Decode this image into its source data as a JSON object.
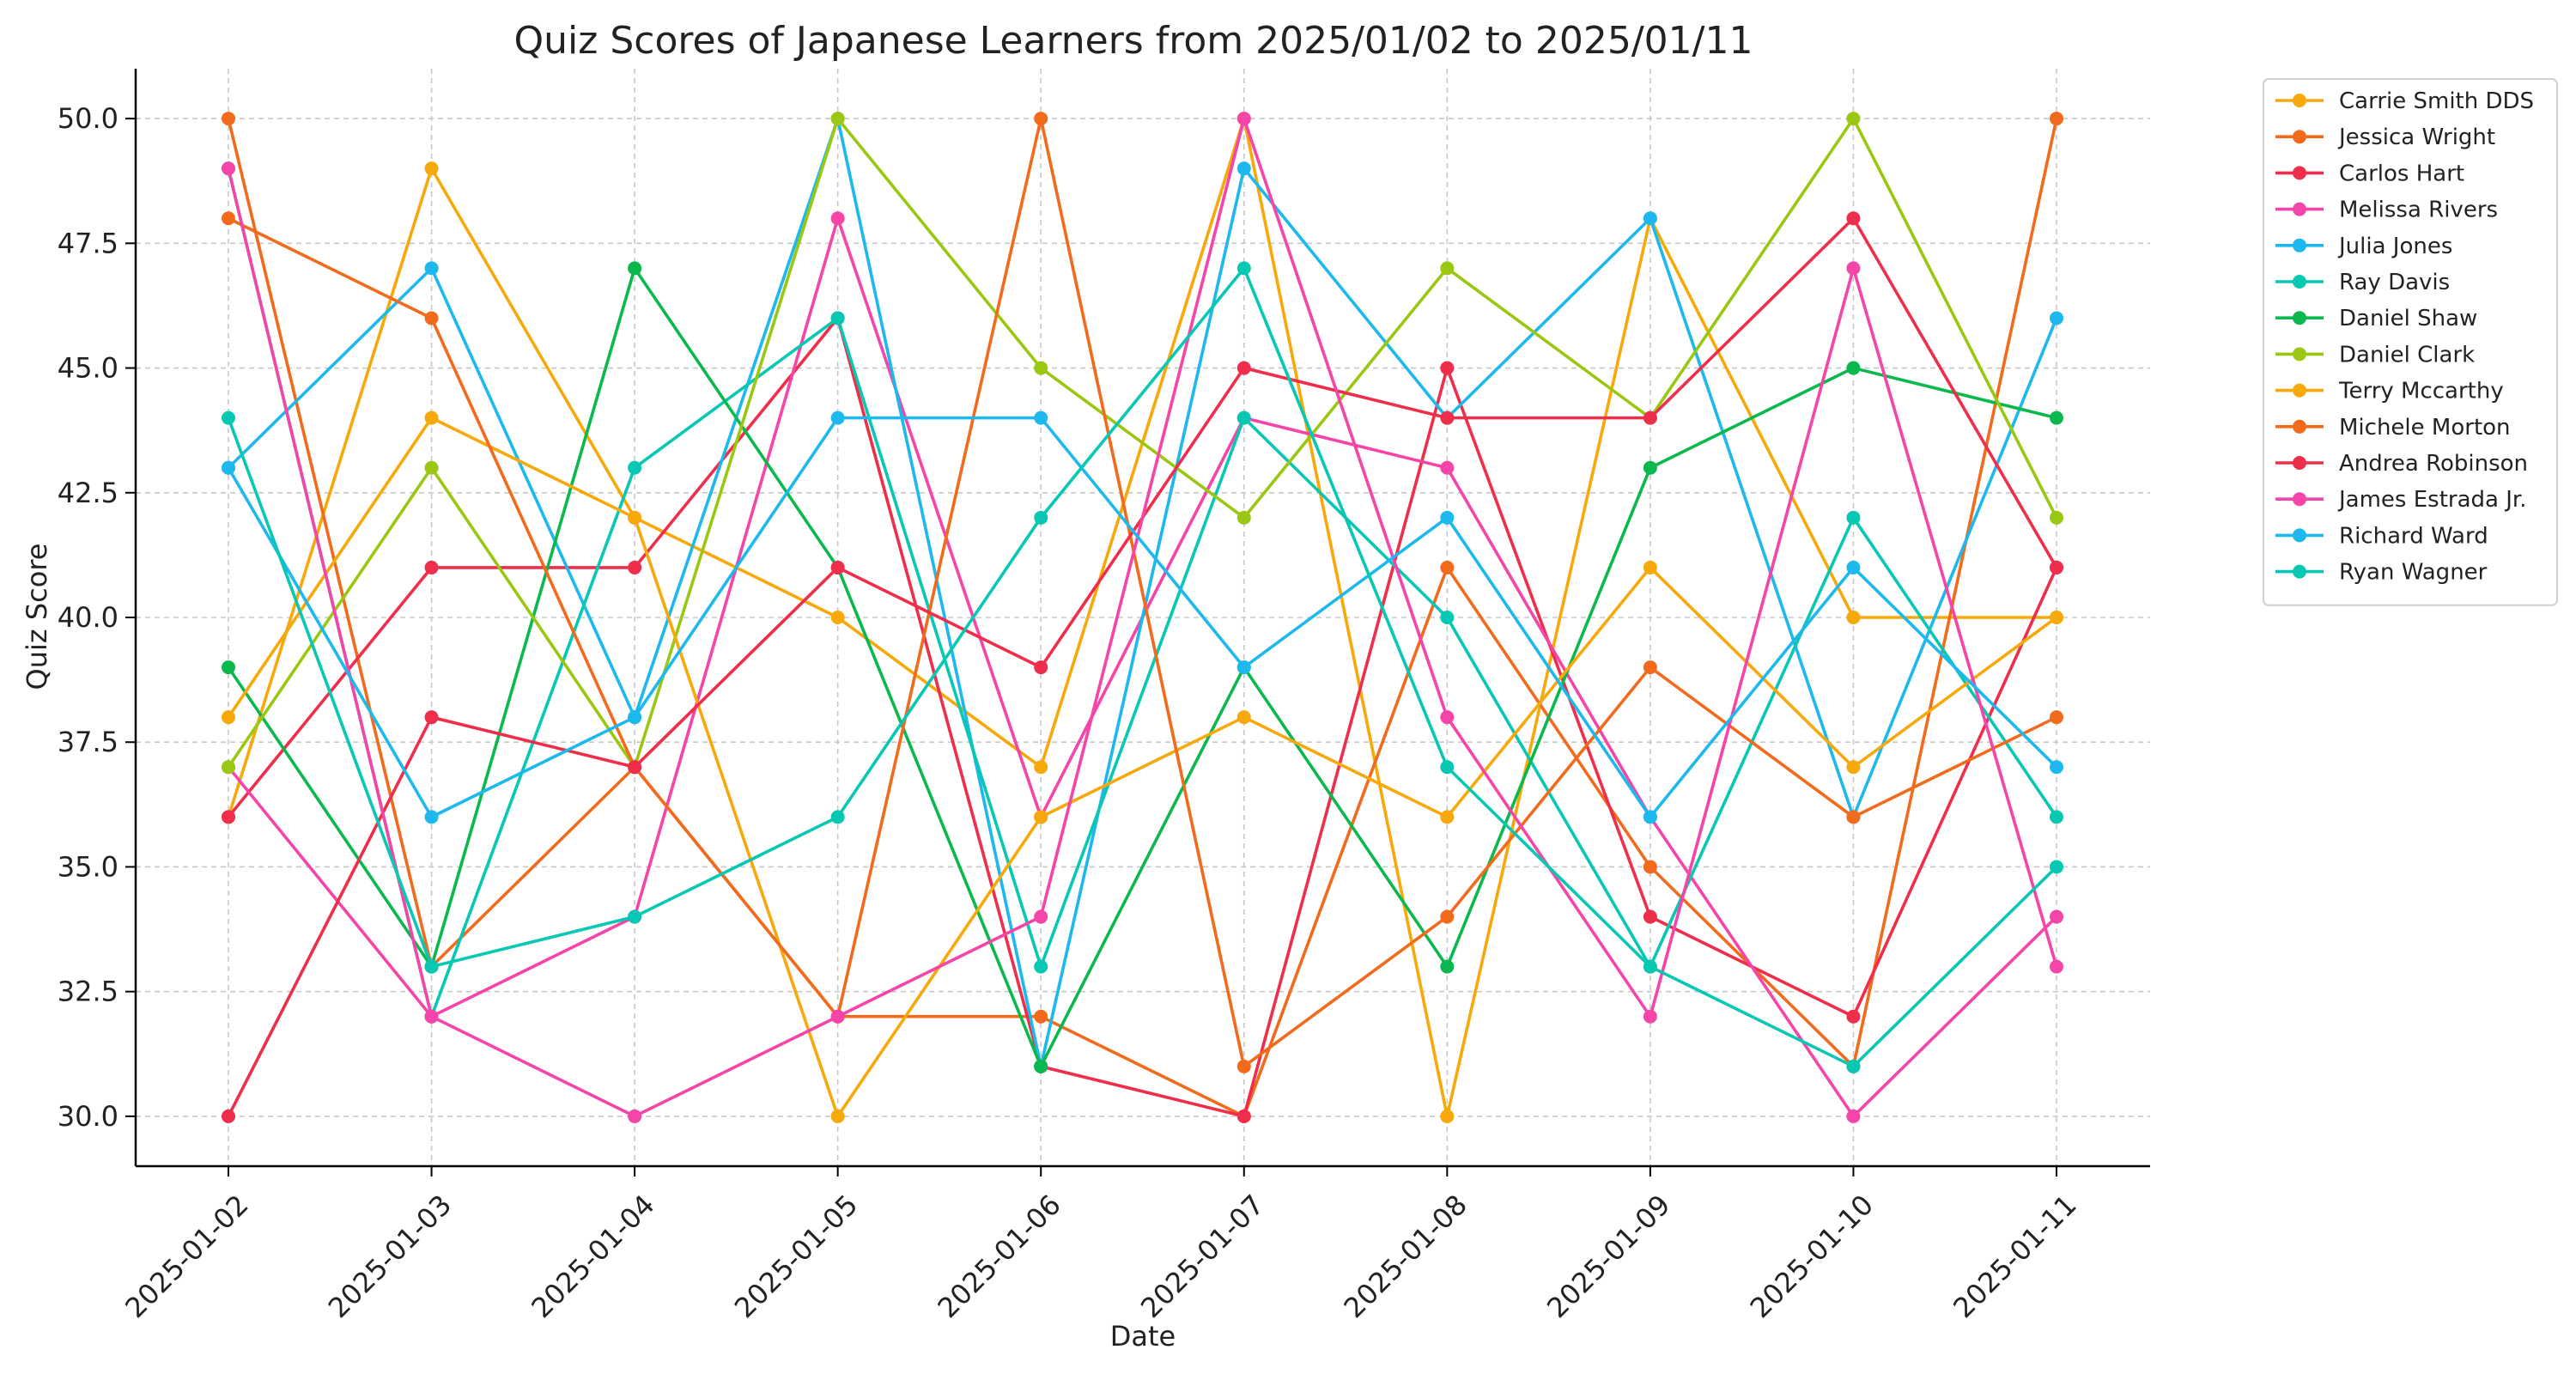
{
  "chart_data": {
    "type": "line",
    "title": "Quiz Scores of Japanese Learners from 2025/01/02 to 2025/01/11",
    "xlabel": "Date",
    "ylabel": "Quiz Score",
    "x": [
      "2025-01-02",
      "2025-01-03",
      "2025-01-04",
      "2025-01-05",
      "2025-01-06",
      "2025-01-07",
      "2025-01-08",
      "2025-01-09",
      "2025-01-10",
      "2025-01-11"
    ],
    "ylim": [
      29,
      51
    ],
    "yticks": [
      "30.0",
      "32.5",
      "35.0",
      "37.5",
      "40.0",
      "42.5",
      "45.0",
      "47.5",
      "50.0"
    ],
    "grid": true,
    "legend_position": "outside-top-right",
    "series": [
      {
        "name": "Carrie Smith DDS",
        "color": "#f7a90c",
        "values": [
          36,
          49,
          42,
          40,
          37,
          50,
          30,
          48,
          40,
          40
        ]
      },
      {
        "name": "Jessica Wright",
        "color": "#f26b1d",
        "values": [
          50,
          33,
          37,
          32,
          32,
          30,
          41,
          35,
          31,
          50
        ]
      },
      {
        "name": "Carlos Hart",
        "color": "#ee2e4a",
        "values": [
          36,
          41,
          41,
          46,
          31,
          30,
          45,
          34,
          32,
          41
        ]
      },
      {
        "name": "Melissa Rivers",
        "color": "#f545a9",
        "values": [
          37,
          32,
          34,
          48,
          36,
          44,
          43,
          36,
          30,
          34
        ]
      },
      {
        "name": "Julia Jones",
        "color": "#1db8ee",
        "values": [
          43,
          47,
          38,
          50,
          31,
          49,
          44,
          48,
          36,
          46
        ]
      },
      {
        "name": "Ray Davis",
        "color": "#08c7b3",
        "values": [
          49,
          32,
          43,
          46,
          33,
          44,
          40,
          33,
          42,
          36
        ]
      },
      {
        "name": "Daniel Shaw",
        "color": "#0ab84e",
        "values": [
          39,
          33,
          47,
          41,
          31,
          39,
          33,
          43,
          45,
          44
        ]
      },
      {
        "name": "Daniel Clark",
        "color": "#9ac812",
        "values": [
          37,
          43,
          37,
          50,
          45,
          42,
          47,
          44,
          50,
          42
        ]
      },
      {
        "name": "Terry Mccarthy",
        "color": "#f7a90c",
        "values": [
          38,
          44,
          42,
          30,
          36,
          38,
          36,
          41,
          37,
          40
        ]
      },
      {
        "name": "Michele Morton",
        "color": "#f26b1d",
        "values": [
          48,
          46,
          37,
          32,
          50,
          31,
          34,
          39,
          36,
          38
        ]
      },
      {
        "name": "Andrea Robinson",
        "color": "#ee2e4a",
        "values": [
          30,
          38,
          37,
          41,
          39,
          45,
          44,
          44,
          48,
          41
        ]
      },
      {
        "name": "James Estrada Jr.",
        "color": "#f545a9",
        "values": [
          49,
          32,
          30,
          32,
          34,
          50,
          38,
          32,
          47,
          33
        ]
      },
      {
        "name": "Richard Ward",
        "color": "#1db8ee",
        "values": [
          43,
          36,
          38,
          44,
          44,
          39,
          42,
          36,
          41,
          37
        ]
      },
      {
        "name": "Ryan Wagner",
        "color": "#08c7b3",
        "values": [
          44,
          33,
          34,
          36,
          42,
          47,
          37,
          33,
          31,
          35
        ]
      }
    ]
  }
}
